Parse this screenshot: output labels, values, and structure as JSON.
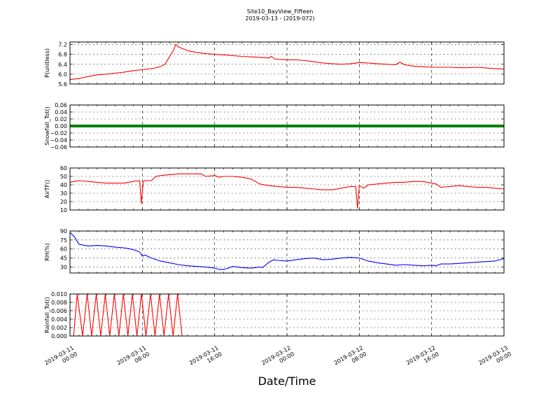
{
  "title": "Site10_BayView_Fifteen",
  "subtitle": "2019-03-13 - (2019-072)",
  "xlabel": "Date/Time",
  "x_ticks": [
    [
      "2019-03-11",
      "00:00"
    ],
    [
      "2019-03-11",
      "08:00"
    ],
    [
      "2019-03-11",
      "16:00"
    ],
    [
      "2019-03-12",
      "00:00"
    ],
    [
      "2019-03-12",
      "08:00"
    ],
    [
      "2019-03-12",
      "16:00"
    ],
    [
      "2019-03-13",
      "00:00"
    ]
  ],
  "chart_data": [
    {
      "type": "line",
      "ylabel": "P(unitless)",
      "color": "#ff0000",
      "xlim": [
        0,
        48
      ],
      "ylim": [
        5.6,
        7.3
      ],
      "yticks": [
        5.6,
        6.0,
        6.4,
        6.8,
        7.2
      ],
      "ytick_labels": [
        "5.6",
        "6.0",
        "6.4",
        "6.8",
        "7.2"
      ],
      "grid": true,
      "x_hours": [
        0,
        1,
        2,
        3,
        4,
        5,
        6,
        7,
        8,
        9,
        10,
        10.5,
        11,
        11.5,
        11.7,
        12,
        13,
        14,
        15,
        16,
        17,
        18,
        19,
        20,
        21,
        22,
        22.3,
        22.6,
        23,
        24,
        25,
        26,
        27,
        28,
        29,
        30,
        31,
        32,
        33,
        34,
        35,
        36,
        36.5,
        37,
        38,
        39,
        40,
        41,
        42,
        43,
        44,
        45,
        46,
        47,
        48
      ],
      "y_values": [
        5.78,
        5.82,
        5.9,
        5.97,
        6.0,
        6.04,
        6.08,
        6.14,
        6.18,
        6.22,
        6.3,
        6.4,
        6.7,
        7.0,
        7.2,
        7.1,
        6.95,
        6.88,
        6.83,
        6.8,
        6.78,
        6.75,
        6.72,
        6.7,
        6.68,
        6.65,
        6.72,
        6.62,
        6.6,
        6.58,
        6.58,
        6.55,
        6.5,
        6.45,
        6.42,
        6.4,
        6.42,
        6.47,
        6.45,
        6.42,
        6.4,
        6.38,
        6.48,
        6.38,
        6.32,
        6.3,
        6.28,
        6.28,
        6.28,
        6.26,
        6.26,
        6.28,
        6.25,
        6.22,
        6.2
      ]
    },
    {
      "type": "line",
      "ylabel": "Snowfall_Tot()",
      "color": "#008000",
      "xlim": [
        0,
        48
      ],
      "ylim": [
        -0.06,
        0.06
      ],
      "yticks": [
        -0.06,
        -0.04,
        -0.02,
        0.0,
        0.02,
        0.04,
        0.06
      ],
      "ytick_labels": [
        "−0.06",
        "−0.04",
        "−0.02",
        "0.00",
        "0.02",
        "0.04",
        "0.06"
      ],
      "grid": true,
      "x_hours": [
        0,
        48
      ],
      "y_values": [
        0.0,
        0.0
      ]
    },
    {
      "type": "line",
      "ylabel": "AirTF()",
      "color": "#ff0000",
      "xlim": [
        0,
        48
      ],
      "ylim": [
        10,
        60
      ],
      "yticks": [
        10,
        20,
        30,
        40,
        50,
        60
      ],
      "ytick_labels": [
        "10",
        "20",
        "30",
        "40",
        "50",
        "60"
      ],
      "grid": true,
      "x_hours": [
        0,
        1,
        2,
        3,
        4,
        5,
        6,
        7,
        7.7,
        7.9,
        8.1,
        8.3,
        9,
        9.5,
        10,
        11,
        12,
        13,
        14,
        14.5,
        15,
        16,
        16.5,
        17,
        18,
        19,
        20,
        21,
        22,
        23,
        24,
        25,
        26,
        27,
        28,
        29,
        30,
        31,
        31.6,
        31.8,
        32,
        32.2,
        32.5,
        33,
        34,
        35,
        36,
        37,
        38,
        39,
        40,
        40.5,
        41,
        42,
        43,
        44,
        45,
        46,
        47,
        48
      ],
      "y_values": [
        43,
        45,
        44,
        43,
        42,
        42,
        42,
        44,
        45,
        18,
        44,
        45,
        45,
        50,
        51,
        52,
        53,
        53,
        53,
        53,
        50,
        51,
        49,
        50,
        50,
        49,
        47,
        41,
        39,
        38,
        37,
        37,
        36,
        35,
        34,
        34,
        36,
        38,
        38,
        12,
        39,
        38,
        36,
        40,
        41,
        42,
        43,
        43,
        44,
        44,
        42,
        41,
        37,
        38,
        39,
        38,
        37,
        37,
        36,
        35
      ]
    },
    {
      "type": "line",
      "ylabel": "RH(%)",
      "color": "#0000ff",
      "xlim": [
        0,
        48
      ],
      "ylim": [
        20,
        90
      ],
      "yticks": [
        30,
        45,
        60,
        75,
        90
      ],
      "ytick_labels": [
        "30",
        "45",
        "60",
        "75",
        "90"
      ],
      "grid": true,
      "x_hours": [
        0,
        0.5,
        1,
        2,
        3,
        4,
        5,
        6,
        7,
        7.7,
        8,
        8.3,
        9,
        10,
        11,
        12,
        13,
        14,
        15,
        16,
        16.5,
        17,
        17.5,
        18,
        19,
        20,
        21,
        21.3,
        22,
        22.5,
        23,
        24,
        25,
        26,
        27,
        28,
        29,
        30,
        31,
        32,
        33,
        34,
        35,
        36,
        37,
        38,
        39,
        40,
        40.5,
        41,
        42,
        43,
        44,
        45,
        46,
        47,
        48
      ],
      "y_values": [
        88,
        80,
        68,
        65,
        66,
        65,
        63,
        62,
        59,
        55,
        48,
        50,
        45,
        40,
        37,
        34,
        32,
        31,
        30,
        28,
        26,
        26,
        28,
        31,
        29,
        28,
        30,
        29,
        38,
        42,
        41,
        40,
        42,
        44,
        45,
        42,
        43,
        45,
        46,
        45,
        40,
        37,
        35,
        33,
        34,
        33,
        32,
        33,
        32,
        35,
        35,
        36,
        37,
        38,
        39,
        40,
        44
      ]
    },
    {
      "type": "line",
      "ylabel": "Rainfall_Tot()",
      "color": "#ff0000",
      "xlim": [
        0,
        48
      ],
      "ylim": [
        0.0,
        0.01
      ],
      "yticks": [
        0.0,
        0.002,
        0.004,
        0.006,
        0.008,
        0.01
      ],
      "ytick_labels": [
        "0.000",
        "0.002",
        "0.004",
        "0.006",
        "0.008",
        "0.010"
      ],
      "grid": true,
      "x_hours": [
        0,
        0.4,
        0.8,
        1.4,
        1.9,
        2.4,
        2.9,
        3.4,
        3.9,
        4.4,
        4.9,
        5.4,
        5.9,
        6.4,
        6.9,
        7.4,
        7.9,
        8.4,
        8.9,
        9.4,
        9.9,
        10.4,
        10.9,
        11.4,
        11.9,
        12.4,
        48
      ],
      "y_values": [
        0,
        0,
        0.01,
        0,
        0.01,
        0,
        0.01,
        0,
        0.01,
        0,
        0.01,
        0,
        0.01,
        0,
        0.01,
        0,
        0.01,
        0,
        0.01,
        0,
        0.01,
        0,
        0.01,
        0,
        0.01,
        0,
        0
      ]
    }
  ]
}
